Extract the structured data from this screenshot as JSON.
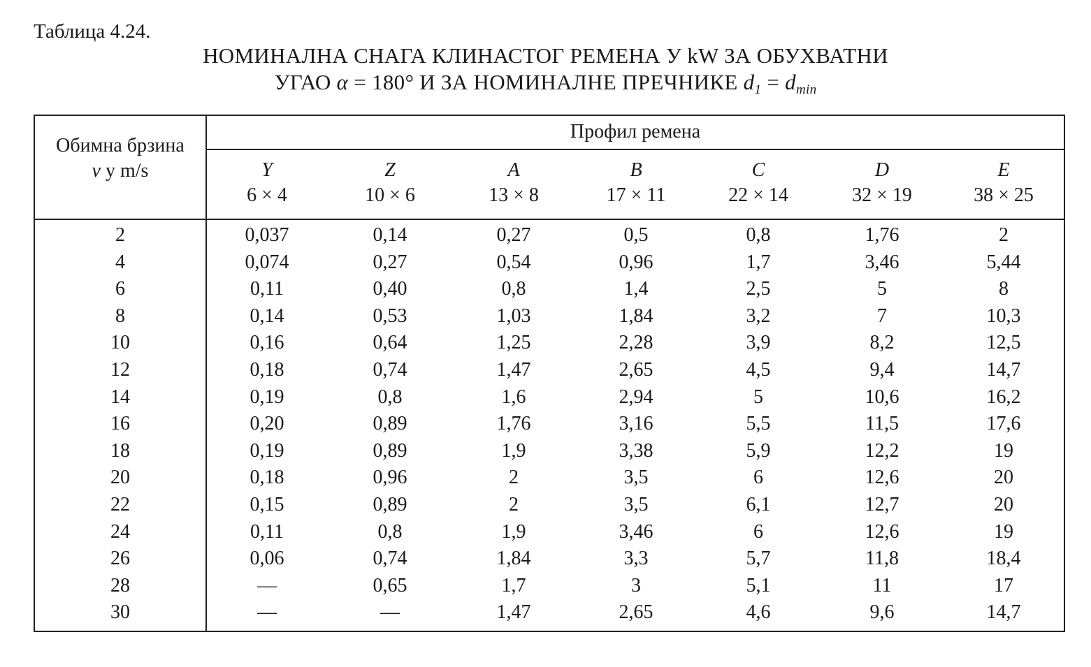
{
  "caption": "Таблица 4.24.",
  "title": {
    "line1": "НОМИНАЛНА СНАГА КЛИНАСТОГ РЕМЕНА У kW ЗА ОБУХВАТНИ",
    "line2_prefix": "УГАО ",
    "alpha": "α",
    "line2_mid": " = 180° И ЗА НОМИНАЛНЕ ПРЕЧНИКЕ ",
    "d": "d",
    "sub1": "1",
    "eq": " = ",
    "d2": "d",
    "submin": "min"
  },
  "table": {
    "row_header_line1": "Обимна брзина",
    "row_header_v": "v",
    "row_header_line2_rest": " у m/s",
    "group_header": "Профил ремена",
    "profiles": [
      {
        "letter": "Y",
        "size": "6 × 4"
      },
      {
        "letter": "Z",
        "size": "10 × 6"
      },
      {
        "letter": "A",
        "size": "13 × 8"
      },
      {
        "letter": "B",
        "size": "17 × 11"
      },
      {
        "letter": "C",
        "size": "22 × 14"
      },
      {
        "letter": "D",
        "size": "32 × 19"
      },
      {
        "letter": "E",
        "size": "38 × 25"
      }
    ],
    "rows": [
      {
        "v": "2",
        "values": [
          "0,037",
          "0,14",
          "0,27",
          "0,5",
          "0,8",
          "1,76",
          "2"
        ]
      },
      {
        "v": "4",
        "values": [
          "0,074",
          "0,27",
          "0,54",
          "0,96",
          "1,7",
          "3,46",
          "5,44"
        ]
      },
      {
        "v": "6",
        "values": [
          "0,11",
          "0,40",
          "0,8",
          "1,4",
          "2,5",
          "5",
          "8"
        ]
      },
      {
        "v": "8",
        "values": [
          "0,14",
          "0,53",
          "1,03",
          "1,84",
          "3,2",
          "7",
          "10,3"
        ]
      },
      {
        "v": "10",
        "values": [
          "0,16",
          "0,64",
          "1,25",
          "2,28",
          "3,9",
          "8,2",
          "12,5"
        ]
      },
      {
        "v": "12",
        "values": [
          "0,18",
          "0,74",
          "1,47",
          "2,65",
          "4,5",
          "9,4",
          "14,7"
        ]
      },
      {
        "v": "14",
        "values": [
          "0,19",
          "0,8",
          "1,6",
          "2,94",
          "5",
          "10,6",
          "16,2"
        ]
      },
      {
        "v": "16",
        "values": [
          "0,20",
          "0,89",
          "1,76",
          "3,16",
          "5,5",
          "11,5",
          "17,6"
        ]
      },
      {
        "v": "18",
        "values": [
          "0,19",
          "0,89",
          "1,9",
          "3,38",
          "5,9",
          "12,2",
          "19"
        ]
      },
      {
        "v": "20",
        "values": [
          "0,18",
          "0,96",
          "2",
          "3,5",
          "6",
          "12,6",
          "20"
        ]
      },
      {
        "v": "22",
        "values": [
          "0,15",
          "0,89",
          "2",
          "3,5",
          "6,1",
          "12,7",
          "20"
        ]
      },
      {
        "v": "24",
        "values": [
          "0,11",
          "0,8",
          "1,9",
          "3,46",
          "6",
          "12,6",
          "19"
        ]
      },
      {
        "v": "26",
        "values": [
          "0,06",
          "0,74",
          "1,84",
          "3,3",
          "5,7",
          "11,8",
          "18,4"
        ]
      },
      {
        "v": "28",
        "values": [
          "—",
          "0,65",
          "1,7",
          "3",
          "5,1",
          "11",
          "17"
        ]
      },
      {
        "v": "30",
        "values": [
          "—",
          "—",
          "1,47",
          "2,65",
          "4,6",
          "9,6",
          "14,7"
        ]
      }
    ]
  }
}
